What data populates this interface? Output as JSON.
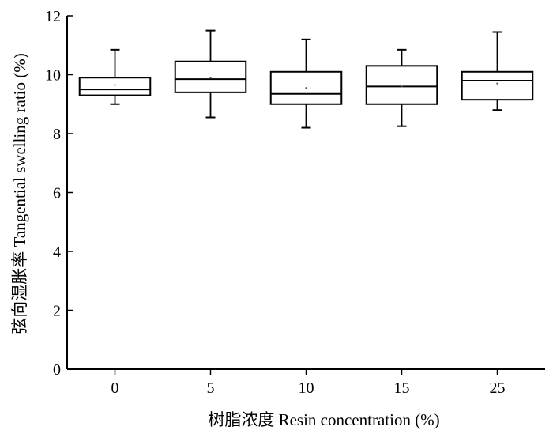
{
  "chart_data": {
    "type": "box",
    "title": "",
    "xlabel": "树脂浓度 Resin concentration (%)",
    "ylabel": "弦向湿胀率 Tangential swelling ratio (%)",
    "ylim": [
      0,
      12
    ],
    "yticks": [
      0,
      2,
      4,
      6,
      8,
      10,
      12
    ],
    "categories": [
      "0",
      "5",
      "10",
      "15",
      "25"
    ],
    "boxes": [
      {
        "category": "0",
        "whisker_low": 9.0,
        "q1": 9.3,
        "median": 9.5,
        "q3": 9.9,
        "whisker_high": 10.85,
        "mean": 9.65
      },
      {
        "category": "5",
        "whisker_low": 8.55,
        "q1": 9.4,
        "median": 9.85,
        "q3": 10.45,
        "whisker_high": 11.5,
        "mean": 9.9
      },
      {
        "category": "10",
        "whisker_low": 8.2,
        "q1": 9.0,
        "median": 9.35,
        "q3": 10.1,
        "whisker_high": 11.2,
        "mean": 9.55
      },
      {
        "category": "15",
        "whisker_low": 8.25,
        "q1": 9.0,
        "median": 9.6,
        "q3": 10.3,
        "whisker_high": 10.85,
        "mean": 9.6
      },
      {
        "category": "25",
        "whisker_low": 8.8,
        "q1": 9.15,
        "median": 9.8,
        "q3": 10.1,
        "whisker_high": 11.45,
        "mean": 9.7
      }
    ],
    "grid": false,
    "legend": "none"
  }
}
